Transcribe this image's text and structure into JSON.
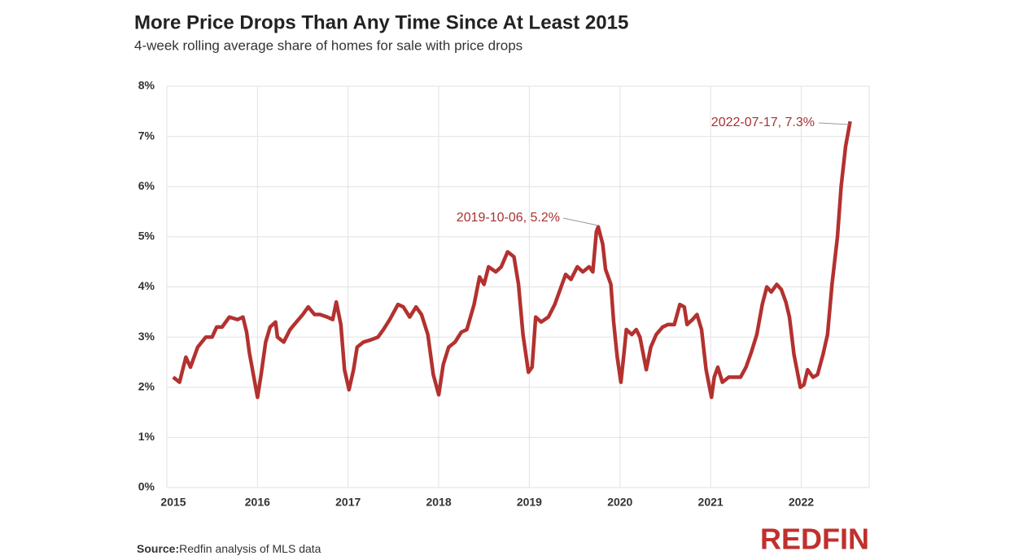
{
  "chart_data": {
    "type": "line",
    "title": "More Price Drops Than Any Time Since At Least 2015",
    "subtitle": "4-week rolling average share of homes for sale with price drops",
    "xlim": [
      2015,
      2022.75
    ],
    "xticks": [
      2015,
      2016,
      2017,
      2018,
      2019,
      2020,
      2021,
      2022
    ],
    "ylim": [
      0,
      8
    ],
    "yticks": [
      {
        "value": 0,
        "label": "0%"
      },
      {
        "value": 1,
        "label": "1%"
      },
      {
        "value": 2,
        "label": "2%"
      },
      {
        "value": 3,
        "label": "3%"
      },
      {
        "value": 4,
        "label": "4%"
      },
      {
        "value": 5,
        "label": "5%"
      },
      {
        "value": 6,
        "label": "6%"
      },
      {
        "value": 7,
        "label": "7%"
      },
      {
        "value": 8,
        "label": "8%"
      }
    ],
    "grid": true,
    "x": [
      2015.07,
      2015.14,
      2015.21,
      2015.26,
      2015.34,
      2015.43,
      2015.5,
      2015.55,
      2015.61,
      2015.69,
      2015.78,
      2015.84,
      2015.88,
      2015.91,
      2016.0,
      2016.04,
      2016.09,
      2016.14,
      2016.2,
      2016.22,
      2016.29,
      2016.36,
      2016.43,
      2016.5,
      2016.56,
      2016.63,
      2016.69,
      2016.77,
      2016.83,
      2016.87,
      2016.92,
      2016.96,
      2017.01,
      2017.06,
      2017.1,
      2017.17,
      2017.26,
      2017.33,
      2017.39,
      2017.46,
      2017.55,
      2017.61,
      2017.68,
      2017.75,
      2017.81,
      2017.88,
      2017.94,
      2018.0,
      2018.05,
      2018.11,
      2018.18,
      2018.25,
      2018.31,
      2018.39,
      2018.45,
      2018.5,
      2018.55,
      2018.63,
      2018.69,
      2018.76,
      2018.83,
      2018.88,
      2018.93,
      2018.99,
      2019.03,
      2019.07,
      2019.13,
      2019.21,
      2019.28,
      2019.34,
      2019.4,
      2019.46,
      2019.53,
      2019.59,
      2019.66,
      2019.7,
      2019.74,
      2019.76,
      2019.81,
      2019.84,
      2019.9,
      2019.93,
      2019.97,
      2020.01,
      2020.04,
      2020.07,
      2020.13,
      2020.18,
      2020.22,
      2020.29,
      2020.34,
      2020.4,
      2020.47,
      2020.53,
      2020.6,
      2020.66,
      2020.71,
      2020.74,
      2020.8,
      2020.85,
      2020.9,
      2020.95,
      2021.01,
      2021.04,
      2021.08,
      2021.13,
      2021.2,
      2021.27,
      2021.33,
      2021.39,
      2021.45,
      2021.51,
      2021.57,
      2021.62,
      2021.67,
      2021.73,
      2021.78,
      2021.83,
      2021.87,
      2021.92,
      2021.99,
      2022.03,
      2022.07,
      2022.13,
      2022.18,
      2022.24,
      2022.29,
      2022.34,
      2022.4,
      2022.44,
      2022.49,
      2022.54
    ],
    "series": [
      {
        "color": "#b3312f",
        "values": [
          2.2,
          2.1,
          2.6,
          2.4,
          2.8,
          3.0,
          3.0,
          3.2,
          3.2,
          3.4,
          3.35,
          3.4,
          3.1,
          2.7,
          1.8,
          2.25,
          2.9,
          3.2,
          3.3,
          3.0,
          2.9,
          3.15,
          3.3,
          3.45,
          3.6,
          3.45,
          3.45,
          3.4,
          3.35,
          3.7,
          3.25,
          2.35,
          1.95,
          2.35,
          2.8,
          2.9,
          2.95,
          3.0,
          3.15,
          3.35,
          3.65,
          3.6,
          3.4,
          3.6,
          3.45,
          3.05,
          2.25,
          1.85,
          2.45,
          2.8,
          2.9,
          3.1,
          3.15,
          3.65,
          4.2,
          4.05,
          4.4,
          4.3,
          4.4,
          4.7,
          4.6,
          4.05,
          3.05,
          2.3,
          2.4,
          3.4,
          3.3,
          3.4,
          3.65,
          3.95,
          4.25,
          4.15,
          4.4,
          4.3,
          4.4,
          4.3,
          5.1,
          5.2,
          4.85,
          4.35,
          4.05,
          3.3,
          2.6,
          2.1,
          2.6,
          3.15,
          3.05,
          3.15,
          3.0,
          2.35,
          2.8,
          3.05,
          3.2,
          3.25,
          3.25,
          3.65,
          3.6,
          3.25,
          3.35,
          3.45,
          3.15,
          2.35,
          1.8,
          2.2,
          2.4,
          2.1,
          2.2,
          2.2,
          2.2,
          2.4,
          2.7,
          3.05,
          3.65,
          4.0,
          3.9,
          4.05,
          3.95,
          3.7,
          3.4,
          2.65,
          2.0,
          2.05,
          2.35,
          2.2,
          2.25,
          2.65,
          3.05,
          4.05,
          5.0,
          6.0,
          6.8,
          7.3
        ]
      }
    ],
    "annotations": [
      "2019-10-06, 5.2%",
      "2022-07-17, 7.3%"
    ],
    "source_label": "Source:",
    "source": "Redfin analysis of MLS data",
    "logo": "REDFIN"
  }
}
